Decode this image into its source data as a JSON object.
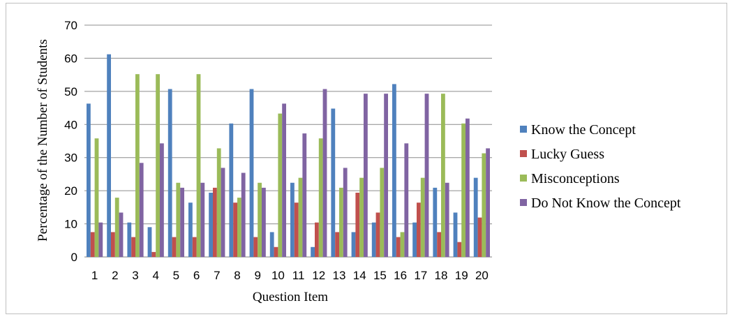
{
  "chart_data": {
    "type": "bar",
    "categories": [
      "1",
      "2",
      "3",
      "4",
      "5",
      "6",
      "7",
      "8",
      "9",
      "10",
      "11",
      "12",
      "13",
      "14",
      "15",
      "16",
      "17",
      "18",
      "19",
      "20"
    ],
    "series": [
      {
        "name": "Know the Concept",
        "color": "#4f81bd",
        "values": [
          46.3,
          61.2,
          10.4,
          9.0,
          50.7,
          16.4,
          19.4,
          40.3,
          50.7,
          7.5,
          22.4,
          3.0,
          44.8,
          7.5,
          10.4,
          52.2,
          10.4,
          20.9,
          13.4,
          23.9
        ]
      },
      {
        "name": "Lucky Guess",
        "color": "#c0504d",
        "values": [
          7.5,
          7.5,
          6.0,
          1.5,
          6.0,
          6.0,
          20.9,
          16.4,
          6.0,
          3.0,
          16.4,
          10.4,
          7.5,
          19.4,
          13.4,
          6.0,
          16.4,
          7.5,
          4.5,
          11.9
        ]
      },
      {
        "name": "Misconceptions",
        "color": "#9bbb59",
        "values": [
          35.8,
          17.9,
          55.2,
          55.2,
          22.4,
          55.2,
          32.8,
          17.9,
          22.4,
          43.3,
          23.9,
          35.8,
          20.9,
          23.9,
          26.9,
          7.5,
          23.9,
          49.3,
          40.3,
          31.3
        ]
      },
      {
        "name": "Do Not Know the Concept",
        "color": "#8064a2",
        "values": [
          10.4,
          13.4,
          28.4,
          34.3,
          20.9,
          22.4,
          26.9,
          25.4,
          20.9,
          46.3,
          37.3,
          50.7,
          26.9,
          49.3,
          49.3,
          34.3,
          49.3,
          22.4,
          41.8,
          32.8
        ]
      }
    ],
    "title": "",
    "xlabel": "Question Item",
    "ylabel": "Percentage of the Number of  Students",
    "ylim": [
      0,
      70
    ],
    "yticks": [
      "0",
      "10",
      "20",
      "30",
      "40",
      "50",
      "60",
      "70"
    ],
    "grid": true,
    "legend_position": "right"
  }
}
